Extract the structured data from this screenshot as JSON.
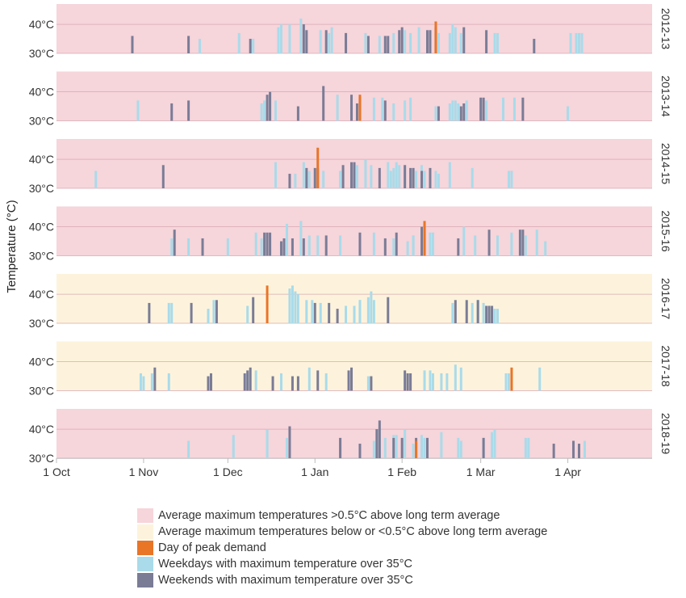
{
  "colors": {
    "above": "#f6d5db",
    "below": "#fdf3dc",
    "peak": "#e97527",
    "weekday": "#a9dbea",
    "weekend": "#7a7c96",
    "gridline": "#d9a9b2"
  },
  "legend": [
    {
      "key": "above",
      "label": "Average maximum temperatures >0.5°C above long term average"
    },
    {
      "key": "below",
      "label": "Average maximum temperatures below or <0.5°C above long term average"
    },
    {
      "key": "peak",
      "label": "Day of peak demand"
    },
    {
      "key": "weekday",
      "label": "Weekdays with maximum temperature over 35°C"
    },
    {
      "key": "weekend",
      "label": "Weekends with maximum temperature over 35°C"
    }
  ],
  "chart_data": {
    "type": "bar",
    "ylabel": "Temperature (°C)",
    "ylim": [
      30,
      47
    ],
    "y_ticks": [
      30,
      40
    ],
    "y_tick_labels": [
      "30°C",
      "40°C"
    ],
    "x_range_days": [
      0,
      212
    ],
    "x_ticks": [
      {
        "day": 0,
        "label": "1 Oct"
      },
      {
        "day": 31,
        "label": "1 Nov"
      },
      {
        "day": 61,
        "label": "1 Dec"
      },
      {
        "day": 92,
        "label": "1 Jan"
      },
      {
        "day": 123,
        "label": "1 Feb"
      },
      {
        "day": 151,
        "label": "1 Mar"
      },
      {
        "day": 182,
        "label": "1 Apr"
      }
    ],
    "x_unit": "days after 1 October",
    "panels": [
      {
        "season": "2012-13",
        "background": "above",
        "weekday": [
          [
            79,
            39
          ],
          [
            80,
            40
          ],
          [
            83,
            40
          ],
          [
            87,
            42
          ],
          [
            94,
            38
          ],
          [
            97,
            37
          ],
          [
            98,
            39
          ],
          [
            110,
            37
          ],
          [
            115,
            36
          ],
          [
            120,
            37
          ],
          [
            124,
            38
          ],
          [
            126,
            37
          ],
          [
            129,
            39
          ],
          [
            136,
            37
          ],
          [
            140,
            37
          ],
          [
            141,
            40
          ],
          [
            142,
            39
          ],
          [
            144,
            37
          ],
          [
            156,
            37
          ],
          [
            157,
            37
          ],
          [
            183,
            37
          ],
          [
            185,
            37
          ],
          [
            186,
            37
          ],
          [
            187,
            37
          ],
          [
            51,
            35
          ],
          [
            70,
            35
          ],
          [
            65,
            37
          ]
        ],
        "weekend": [
          [
            27,
            36
          ],
          [
            47,
            36
          ],
          [
            69,
            35
          ],
          [
            88,
            40
          ],
          [
            89,
            38
          ],
          [
            96,
            38
          ],
          [
            103,
            37
          ],
          [
            111,
            36
          ],
          [
            117,
            36
          ],
          [
            118,
            36
          ],
          [
            122,
            38
          ],
          [
            123,
            39
          ],
          [
            132,
            38
          ],
          [
            133,
            38
          ],
          [
            135,
            39
          ],
          [
            145,
            39
          ],
          [
            153,
            38
          ],
          [
            170,
            35
          ]
        ],
        "peak": [
          [
            135,
            41
          ]
        ]
      },
      {
        "season": "2013-14",
        "background": "above",
        "weekday": [
          [
            29,
            37
          ],
          [
            73,
            36
          ],
          [
            74,
            37
          ],
          [
            76,
            40
          ],
          [
            78,
            37
          ],
          [
            100,
            39
          ],
          [
            105,
            36
          ],
          [
            113,
            38
          ],
          [
            116,
            38
          ],
          [
            120,
            36
          ],
          [
            126,
            38
          ],
          [
            135,
            35
          ],
          [
            140,
            36
          ],
          [
            141,
            37
          ],
          [
            142,
            37
          ],
          [
            143,
            36
          ],
          [
            153,
            37
          ],
          [
            159,
            38
          ],
          [
            163,
            38
          ],
          [
            182,
            35
          ],
          [
            124,
            37
          ],
          [
            146,
            37
          ]
        ],
        "weekend": [
          [
            41,
            36
          ],
          [
            47,
            37
          ],
          [
            75,
            39
          ],
          [
            76,
            40
          ],
          [
            86,
            35
          ],
          [
            95,
            42
          ],
          [
            105,
            39
          ],
          [
            107,
            36
          ],
          [
            108,
            38
          ],
          [
            117,
            37
          ],
          [
            136,
            35
          ],
          [
            144,
            35
          ],
          [
            145,
            36
          ],
          [
            151,
            38
          ],
          [
            152,
            38
          ],
          [
            166,
            38
          ]
        ],
        "peak": [
          [
            108,
            39
          ]
        ]
      },
      {
        "season": "2014-15",
        "background": "above",
        "weekday": [
          [
            14,
            36
          ],
          [
            78,
            39
          ],
          [
            85,
            35
          ],
          [
            88,
            39
          ],
          [
            90,
            36
          ],
          [
            95,
            36
          ],
          [
            101,
            36
          ],
          [
            102,
            37
          ],
          [
            110,
            40
          ],
          [
            112,
            38
          ],
          [
            118,
            39
          ],
          [
            119,
            36
          ],
          [
            120,
            37
          ],
          [
            121,
            39
          ],
          [
            122,
            38
          ],
          [
            124,
            38
          ],
          [
            127,
            37
          ],
          [
            128,
            36
          ],
          [
            130,
            38
          ],
          [
            131,
            36
          ],
          [
            135,
            36
          ],
          [
            136,
            35
          ],
          [
            140,
            39
          ],
          [
            148,
            37
          ],
          [
            161,
            36
          ],
          [
            162,
            36
          ],
          [
            107,
            38
          ],
          [
            105,
            38
          ]
        ],
        "weekend": [
          [
            38,
            38
          ],
          [
            83,
            35
          ],
          [
            89,
            37
          ],
          [
            92,
            37
          ],
          [
            93,
            37
          ],
          [
            102,
            38
          ],
          [
            105,
            39
          ],
          [
            106,
            39
          ],
          [
            115,
            37
          ],
          [
            124,
            38
          ],
          [
            126,
            37
          ],
          [
            127,
            37
          ],
          [
            130,
            36
          ],
          [
            133,
            37
          ]
        ],
        "peak": [
          [
            93,
            44
          ]
        ]
      },
      {
        "season": "2015-16",
        "background": "above",
        "weekday": [
          [
            41,
            36
          ],
          [
            47,
            36
          ],
          [
            61,
            36
          ],
          [
            71,
            38
          ],
          [
            73,
            36
          ],
          [
            82,
            41
          ],
          [
            87,
            42
          ],
          [
            90,
            37
          ],
          [
            93,
            37
          ],
          [
            101,
            37
          ],
          [
            113,
            38
          ],
          [
            120,
            36
          ],
          [
            125,
            35
          ],
          [
            127,
            37
          ],
          [
            133,
            38
          ],
          [
            134,
            38
          ],
          [
            145,
            40
          ],
          [
            149,
            37
          ],
          [
            157,
            37
          ],
          [
            162,
            38
          ],
          [
            167,
            37
          ],
          [
            171,
            39
          ],
          [
            174,
            35
          ],
          [
            127,
            37
          ]
        ],
        "weekend": [
          [
            42,
            39
          ],
          [
            52,
            36
          ],
          [
            74,
            38
          ],
          [
            75,
            38
          ],
          [
            76,
            38
          ],
          [
            80,
            35
          ],
          [
            81,
            36
          ],
          [
            84,
            36
          ],
          [
            88,
            36
          ],
          [
            96,
            37
          ],
          [
            108,
            38
          ],
          [
            117,
            36
          ],
          [
            121,
            38
          ],
          [
            130,
            40
          ],
          [
            131,
            41
          ],
          [
            143,
            36
          ],
          [
            154,
            39
          ],
          [
            165,
            39
          ],
          [
            166,
            39
          ]
        ],
        "peak": [
          [
            131,
            42
          ]
        ]
      },
      {
        "season": "2016-17",
        "background": "below",
        "weekday": [
          [
            40,
            37
          ],
          [
            41,
            37
          ],
          [
            54,
            35
          ],
          [
            56,
            38
          ],
          [
            68,
            36
          ],
          [
            83,
            42
          ],
          [
            84,
            43
          ],
          [
            85,
            41
          ],
          [
            89,
            38
          ],
          [
            91,
            38
          ],
          [
            94,
            37
          ],
          [
            103,
            36
          ],
          [
            108,
            38
          ],
          [
            111,
            39
          ],
          [
            112,
            41
          ],
          [
            113,
            38
          ],
          [
            141,
            37
          ],
          [
            148,
            37
          ],
          [
            150,
            38
          ],
          [
            152,
            37
          ],
          [
            154,
            36
          ],
          [
            155,
            35
          ],
          [
            156,
            35
          ],
          [
            157,
            35
          ],
          [
            86,
            40
          ],
          [
            106,
            36
          ],
          [
            108,
            38
          ]
        ],
        "weekend": [
          [
            33,
            37
          ],
          [
            48,
            37
          ],
          [
            57,
            38
          ],
          [
            70,
            39
          ],
          [
            92,
            37
          ],
          [
            97,
            37
          ],
          [
            100,
            35
          ],
          [
            118,
            39
          ],
          [
            142,
            38
          ],
          [
            146,
            38
          ],
          [
            150,
            38
          ],
          [
            153,
            36
          ],
          [
            154,
            36
          ],
          [
            155,
            36
          ]
        ],
        "peak": [
          [
            75,
            43
          ]
        ]
      },
      {
        "season": "2017-18",
        "background": "below",
        "weekday": [
          [
            30,
            36
          ],
          [
            31,
            35
          ],
          [
            34,
            36
          ],
          [
            40,
            36
          ],
          [
            68,
            36
          ],
          [
            71,
            37
          ],
          [
            80,
            36
          ],
          [
            90,
            38
          ],
          [
            96,
            36
          ],
          [
            112,
            35
          ],
          [
            131,
            37
          ],
          [
            133,
            37
          ],
          [
            134,
            36
          ],
          [
            137,
            36
          ],
          [
            139,
            36
          ],
          [
            142,
            39
          ],
          [
            144,
            38
          ],
          [
            160,
            36
          ],
          [
            161,
            36
          ],
          [
            172,
            38
          ],
          [
            111,
            35
          ]
        ],
        "weekend": [
          [
            35,
            38
          ],
          [
            54,
            35
          ],
          [
            55,
            36
          ],
          [
            67,
            36
          ],
          [
            68,
            37
          ],
          [
            69,
            38
          ],
          [
            77,
            35
          ],
          [
            84,
            35
          ],
          [
            86,
            35
          ],
          [
            93,
            37
          ],
          [
            104,
            37
          ],
          [
            105,
            38
          ],
          [
            112,
            35
          ],
          [
            124,
            37
          ],
          [
            125,
            36
          ],
          [
            126,
            36
          ]
        ],
        "peak": [
          [
            162,
            38
          ]
        ]
      },
      {
        "season": "2018-19",
        "background": "above",
        "weekday": [
          [
            47,
            36
          ],
          [
            63,
            38
          ],
          [
            75,
            40
          ],
          [
            82,
            37
          ],
          [
            113,
            36
          ],
          [
            115,
            40
          ],
          [
            120,
            38
          ],
          [
            121,
            38
          ],
          [
            124,
            40
          ],
          [
            127,
            35
          ],
          [
            130,
            38
          ],
          [
            137,
            39
          ],
          [
            143,
            37
          ],
          [
            144,
            36
          ],
          [
            152,
            37
          ],
          [
            155,
            39
          ],
          [
            156,
            40
          ],
          [
            167,
            37
          ],
          [
            168,
            37
          ],
          [
            188,
            36
          ],
          [
            117,
            37
          ],
          [
            131,
            37
          ]
        ],
        "weekend": [
          [
            83,
            41
          ],
          [
            101,
            37
          ],
          [
            108,
            35
          ],
          [
            114,
            40
          ],
          [
            115,
            43
          ],
          [
            120,
            37
          ],
          [
            123,
            37
          ],
          [
            128,
            37
          ],
          [
            132,
            37
          ],
          [
            152,
            37
          ],
          [
            177,
            35
          ],
          [
            186,
            35
          ],
          [
            184,
            36
          ]
        ],
        "peak": [
          [
            128,
            36
          ]
        ]
      }
    ]
  }
}
